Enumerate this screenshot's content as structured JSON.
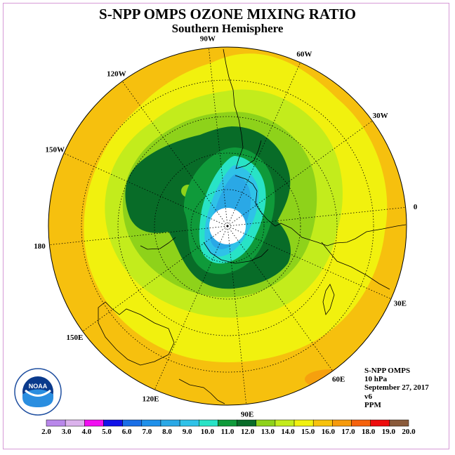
{
  "title": "S-NPP OMPS OZONE MIXING RATIO",
  "subtitle": "Southern Hemisphere",
  "info": {
    "instrument": "S-NPP OMPS",
    "level": "10 hPa",
    "date": "September 27, 2017",
    "version": "v6",
    "units": "PPM"
  },
  "longitude_labels": [
    {
      "text": "90W",
      "lon": -90
    },
    {
      "text": "60W",
      "lon": -60
    },
    {
      "text": "120W",
      "lon": -120
    },
    {
      "text": "30W",
      "lon": -30
    },
    {
      "text": "150W",
      "lon": -150
    },
    {
      "text": "0",
      "lon": 0
    },
    {
      "text": "180",
      "lon": 180
    },
    {
      "text": "30E",
      "lon": 30
    },
    {
      "text": "150E",
      "lon": 150
    },
    {
      "text": "60E",
      "lon": 60
    },
    {
      "text": "120E",
      "lon": 120
    },
    {
      "text": "90E",
      "lon": 90
    }
  ],
  "colorbar": {
    "labels": [
      "2.0",
      "3.0",
      "4.0",
      "5.0",
      "6.0",
      "7.0",
      "8.0",
      "9.0",
      "10.0",
      "11.0",
      "12.0",
      "13.0",
      "14.0",
      "15.0",
      "16.0",
      "17.0",
      "18.0",
      "19.0",
      "20.0"
    ],
    "colors": [
      "#b987ea",
      "#dbb2ec",
      "#f10ef1",
      "#1212e8",
      "#1a6fe6",
      "#1f90ea",
      "#2aa8e6",
      "#2fc2e8",
      "#28e3c6",
      "#0f9a3a",
      "#086c28",
      "#8ed21a",
      "#c3ec1c",
      "#f1f10e",
      "#f7c20c",
      "#f69a0c",
      "#f5620c",
      "#ed0c0c",
      "#8a5a3a"
    ]
  },
  "logo": {
    "text": "NOAA"
  }
}
